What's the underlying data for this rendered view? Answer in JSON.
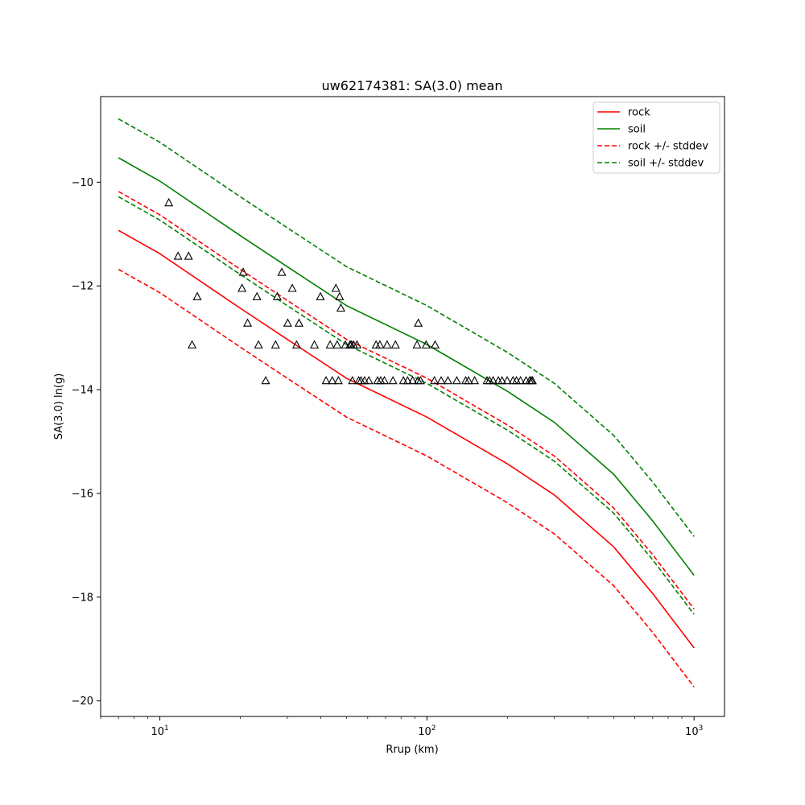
{
  "chart_data": {
    "type": "line",
    "title": "uw62174381: SA(3.0) mean",
    "xlabel": "Rrup (km)",
    "ylabel": "SA(3.0) ln(g)",
    "xscale": "log",
    "xlim": [
      6.0,
      1300.0
    ],
    "ylim": [
      -20.3,
      -8.35
    ],
    "x_ticks": [
      {
        "value": 10,
        "base": "10",
        "exp": "1"
      },
      {
        "value": 100,
        "base": "10",
        "exp": "2"
      },
      {
        "value": 1000,
        "base": "10",
        "exp": "3"
      }
    ],
    "y_ticks": [
      {
        "value": -10,
        "label": "−10"
      },
      {
        "value": -12,
        "label": "−12"
      },
      {
        "value": -14,
        "label": "−14"
      },
      {
        "value": -16,
        "label": "−16"
      },
      {
        "value": -18,
        "label": "−18"
      },
      {
        "value": -20,
        "label": "−20"
      }
    ],
    "grid": false,
    "legend_position": "top-right",
    "legend": [
      {
        "label": "rock",
        "color": "#ff0000",
        "dash": "solid"
      },
      {
        "label": "soil",
        "color": "#008000",
        "dash": "solid"
      },
      {
        "label": "rock +/- stddev",
        "color": "#ff0000",
        "dash": "dashed"
      },
      {
        "label": "soil +/- stddev",
        "color": "#008000",
        "dash": "dashed"
      }
    ],
    "series": [
      {
        "role": "rock",
        "color": "#ff0000",
        "dash": "solid",
        "x": [
          7,
          10,
          20,
          30,
          50,
          100,
          200,
          300,
          500,
          700,
          1000
        ],
        "y": [
          -10.93,
          -11.38,
          -12.43,
          -13.03,
          -13.78,
          -14.53,
          -15.43,
          -16.03,
          -17.03,
          -17.93,
          -18.98
        ]
      },
      {
        "role": "soil",
        "color": "#008000",
        "dash": "solid",
        "x": [
          7,
          10,
          20,
          30,
          50,
          100,
          200,
          300,
          500,
          700,
          1000
        ],
        "y": [
          -9.53,
          -9.98,
          -11.03,
          -11.63,
          -12.38,
          -13.13,
          -14.03,
          -14.63,
          -15.63,
          -16.53,
          -17.58
        ]
      },
      {
        "role": "rock +/- stddev (upper)",
        "color": "#ff0000",
        "dash": "dashed",
        "x": [
          7,
          10,
          20,
          30,
          50,
          100,
          200,
          300,
          500,
          700,
          1000
        ],
        "y": [
          -10.18,
          -10.63,
          -11.68,
          -12.28,
          -13.03,
          -13.78,
          -14.68,
          -15.28,
          -16.28,
          -17.18,
          -18.23
        ]
      },
      {
        "role": "rock +/- stddev (lower)",
        "color": "#ff0000",
        "dash": "dashed",
        "x": [
          7,
          10,
          20,
          30,
          50,
          100,
          200,
          300,
          500,
          700,
          1000
        ],
        "y": [
          -11.68,
          -12.13,
          -13.18,
          -13.78,
          -14.53,
          -15.28,
          -16.18,
          -16.78,
          -17.78,
          -18.68,
          -19.73
        ]
      },
      {
        "role": "soil +/- stddev (upper)",
        "color": "#008000",
        "dash": "dashed",
        "x": [
          7,
          10,
          20,
          30,
          50,
          100,
          200,
          300,
          500,
          700,
          1000
        ],
        "y": [
          -8.78,
          -9.23,
          -10.28,
          -10.88,
          -11.63,
          -12.38,
          -13.28,
          -13.88,
          -14.88,
          -15.78,
          -16.83
        ]
      },
      {
        "role": "soil +/- stddev (lower)",
        "color": "#008000",
        "dash": "dashed",
        "x": [
          7,
          10,
          20,
          30,
          50,
          100,
          200,
          300,
          500,
          700,
          1000
        ],
        "y": [
          -10.28,
          -10.73,
          -11.78,
          -12.38,
          -13.13,
          -13.88,
          -14.78,
          -15.38,
          -16.38,
          -17.28,
          -18.33
        ]
      }
    ],
    "observations": {
      "marker": "triangle",
      "color": "#000000",
      "points": [
        [
          10.8,
          -10.4
        ],
        [
          11.7,
          -11.43
        ],
        [
          12.8,
          -11.43
        ],
        [
          13.8,
          -12.21
        ],
        [
          13.2,
          -13.14
        ],
        [
          20.5,
          -11.74
        ],
        [
          20.3,
          -12.05
        ],
        [
          21.3,
          -12.72
        ],
        [
          23.1,
          -12.21
        ],
        [
          23.4,
          -13.14
        ],
        [
          24.9,
          -13.83
        ],
        [
          27.1,
          -13.14
        ],
        [
          27.5,
          -12.21
        ],
        [
          28.6,
          -11.74
        ],
        [
          30.1,
          -12.72
        ],
        [
          31.3,
          -12.05
        ],
        [
          32.5,
          -13.14
        ],
        [
          33.2,
          -12.72
        ],
        [
          37.9,
          -13.14
        ],
        [
          39.9,
          -12.21
        ],
        [
          41.9,
          -13.83
        ],
        [
          43.4,
          -13.14
        ],
        [
          44.2,
          -13.83
        ],
        [
          45.6,
          -12.05
        ],
        [
          46.1,
          -13.14
        ],
        [
          46.6,
          -13.83
        ],
        [
          47.1,
          -12.21
        ],
        [
          47.6,
          -12.43
        ],
        [
          49.5,
          -13.14
        ],
        [
          51.5,
          -13.14
        ],
        [
          52.0,
          -13.14
        ],
        [
          52.6,
          -13.83
        ],
        [
          53.1,
          -13.14
        ],
        [
          54.7,
          -13.14
        ],
        [
          55.5,
          -13.83
        ],
        [
          56.6,
          -13.83
        ],
        [
          58.4,
          -13.83
        ],
        [
          60.6,
          -13.83
        ],
        [
          64.5,
          -13.14
        ],
        [
          65.3,
          -13.83
        ],
        [
          66.6,
          -13.14
        ],
        [
          67.1,
          -13.83
        ],
        [
          69.3,
          -13.83
        ],
        [
          70.9,
          -13.14
        ],
        [
          74.6,
          -13.83
        ],
        [
          76.2,
          -13.14
        ],
        [
          81.6,
          -13.83
        ],
        [
          84.6,
          -13.83
        ],
        [
          88.4,
          -13.83
        ],
        [
          91.8,
          -13.14
        ],
        [
          92.8,
          -12.72
        ],
        [
          92.6,
          -13.83
        ],
        [
          94.6,
          -13.83
        ],
        [
          99.3,
          -13.14
        ],
        [
          106.6,
          -13.83
        ],
        [
          107.3,
          -13.14
        ],
        [
          113.0,
          -13.83
        ],
        [
          119.8,
          -13.83
        ],
        [
          129.3,
          -13.83
        ],
        [
          139.6,
          -13.83
        ],
        [
          143.1,
          -13.83
        ],
        [
          150.8,
          -13.83
        ],
        [
          167.8,
          -13.83
        ],
        [
          171.5,
          -13.83
        ],
        [
          176.9,
          -13.83
        ],
        [
          185.0,
          -13.83
        ],
        [
          191.0,
          -13.83
        ],
        [
          199.6,
          -13.83
        ],
        [
          209.9,
          -13.83
        ],
        [
          216.3,
          -13.83
        ],
        [
          224.0,
          -13.83
        ],
        [
          235.0,
          -13.83
        ],
        [
          242.4,
          -13.83
        ],
        [
          245.8,
          -13.83
        ],
        [
          248.3,
          -13.83
        ]
      ]
    }
  }
}
